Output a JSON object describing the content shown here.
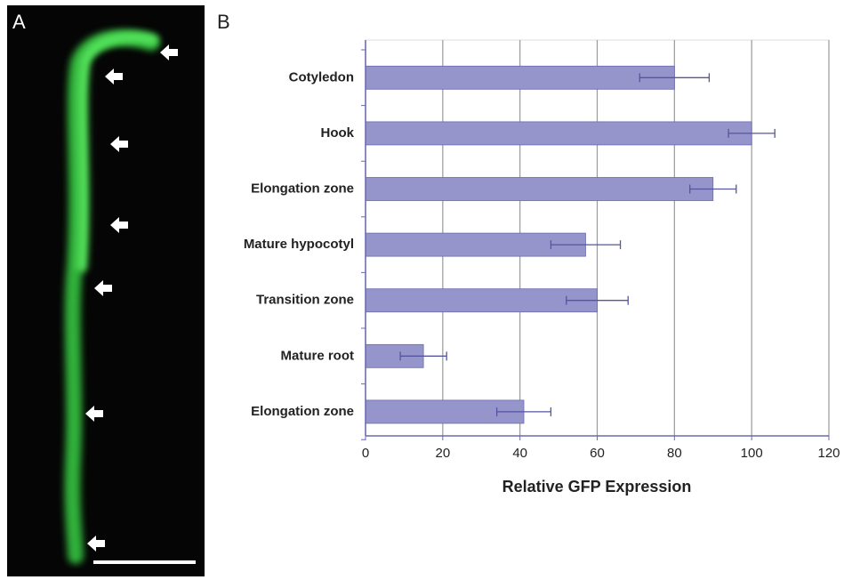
{
  "panel_labels": [
    "A",
    "B"
  ],
  "chart_data": {
    "type": "bar",
    "orientation": "horizontal",
    "x_label": "Relative GFP Expression",
    "categories": [
      "Cotyledon",
      "Hook",
      "Elongation zone",
      "Mature hypocotyl",
      "Transition zone",
      "Mature root",
      "Elongation zone"
    ],
    "values": [
      80,
      100,
      90,
      57,
      60,
      15,
      41
    ],
    "errors": [
      9,
      6,
      6,
      9,
      8,
      6,
      7
    ],
    "color": "#9595cc",
    "xlim": [
      0,
      120
    ],
    "xticks": [
      0,
      20,
      40,
      60,
      80,
      100,
      120
    ],
    "grid": true
  }
}
